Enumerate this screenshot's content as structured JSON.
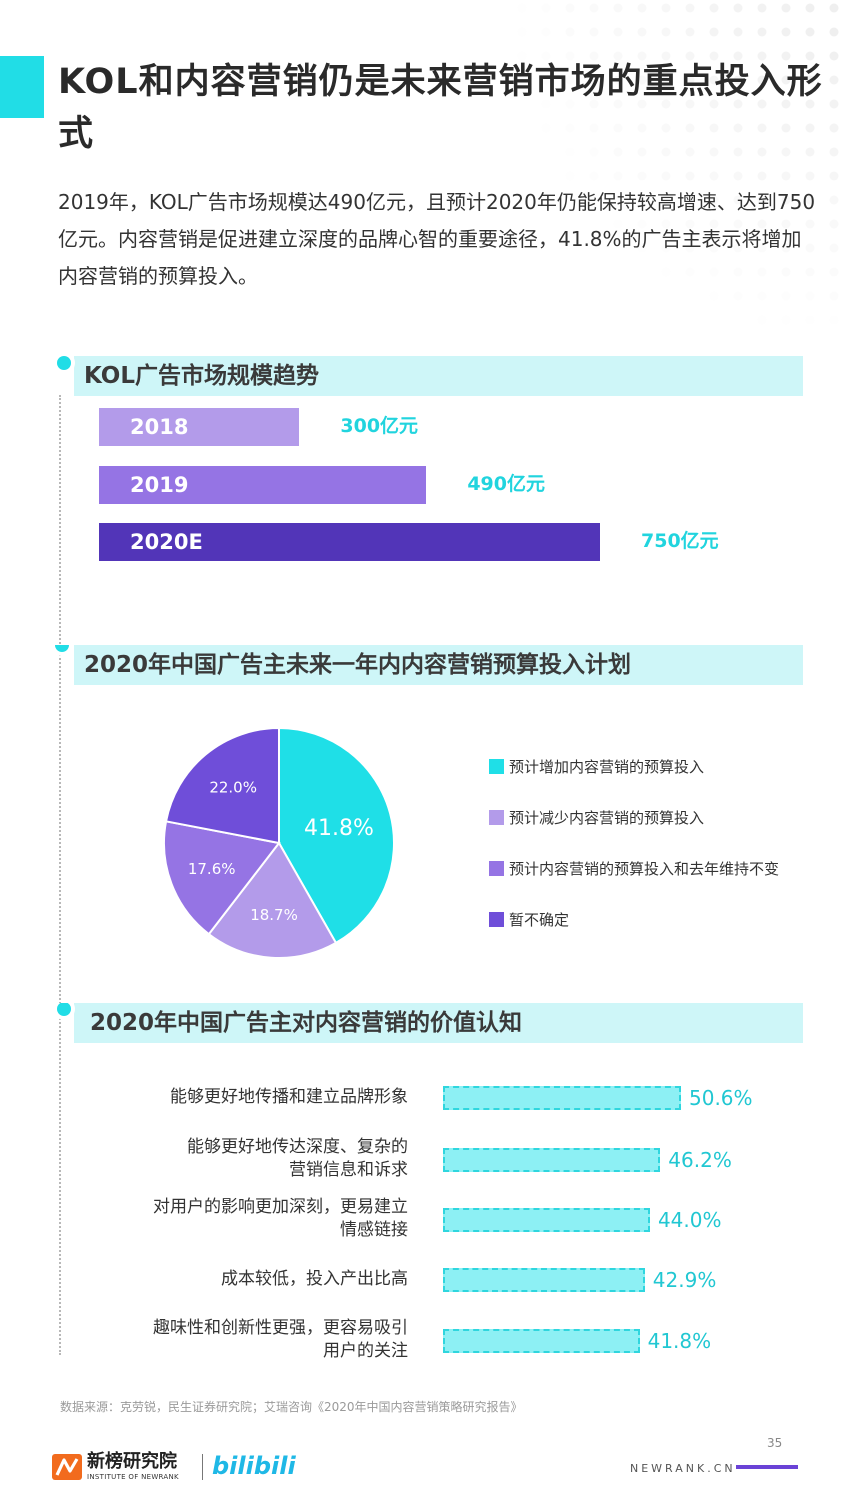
{
  "page": {
    "title": "KOL和内容营销仍是未来营销市场的重点投入形式",
    "intro": "2019年，KOL广告市场规模达490亿元，且预计2020年仍能保持较高增速、达到750亿元。内容营销是促进建立深度的品牌心智的重要途径，41.8%的广告主表示将增加内容营销的预算投入。",
    "source": "数据来源：克劳锐，民生证券研究院；艾瑞咨询《2020年中国内容营销策略研究报告》",
    "page_number": "35",
    "footer_site": "NEWRANK.CN",
    "logo_name": "新榜研究院",
    "logo_sub": "INSTITUTE OF NEWRANK",
    "partner_logo": "bilibili",
    "accent_color": "#21dde6"
  },
  "sections": [
    {
      "title": "KOL广告市场规模趋势"
    },
    {
      "title": "2020年中国广告主未来一年内内容营销预算投入计划"
    },
    {
      "title": "2020年中国广告主对内容营销的价值认知"
    }
  ],
  "chart_data": [
    {
      "type": "bar",
      "orientation": "horizontal",
      "categories": [
        "2018",
        "2019",
        "2020E"
      ],
      "values": [
        300,
        490,
        750
      ],
      "value_labels": [
        "300亿元",
        "490亿元",
        "750亿元"
      ],
      "colors": [
        "#b39bea",
        "#9574e4",
        "#5235b8"
      ]
    },
    {
      "type": "pie",
      "categories": [
        "预计增加内容营销的预算投入",
        "预计减少内容营销的预算投入",
        "预计内容营销的预算投入和去年维持不变",
        "暂不确定"
      ],
      "values": [
        41.8,
        18.7,
        17.6,
        22.0
      ],
      "value_labels": [
        "41.8%",
        "18.7%",
        "17.6%",
        "22.0%"
      ],
      "colors": [
        "#1fdfe7",
        "#b39bea",
        "#9574e4",
        "#6f4ed9"
      ],
      "legend_position": "right"
    },
    {
      "type": "bar",
      "orientation": "horizontal",
      "categories": [
        "能够更好地传播和建立品牌形象",
        "能够更好地传达深度、复杂的营销信息和诉求",
        "对用户的影响更加深刻，更易建立情感链接",
        "成本较低，投入产出比高",
        "趣味性和创新性更强，更容易吸引用户的关注"
      ],
      "category_lines": [
        [
          "能够更好地传播和建立品牌形象"
        ],
        [
          "能够更好地传达深度、复杂的",
          "营销信息和诉求"
        ],
        [
          "对用户的影响更加深刻，更易建立",
          "情感链接"
        ],
        [
          "成本较低，投入产出比高"
        ],
        [
          "趣味性和创新性更强，更容易吸引",
          "用户的关注"
        ]
      ],
      "values": [
        50.6,
        46.2,
        44.0,
        42.9,
        41.8
      ],
      "value_labels": [
        "50.6%",
        "46.2%",
        "44.0%",
        "42.9%",
        "41.8%"
      ],
      "colors": [
        "#8df0f4"
      ]
    }
  ]
}
